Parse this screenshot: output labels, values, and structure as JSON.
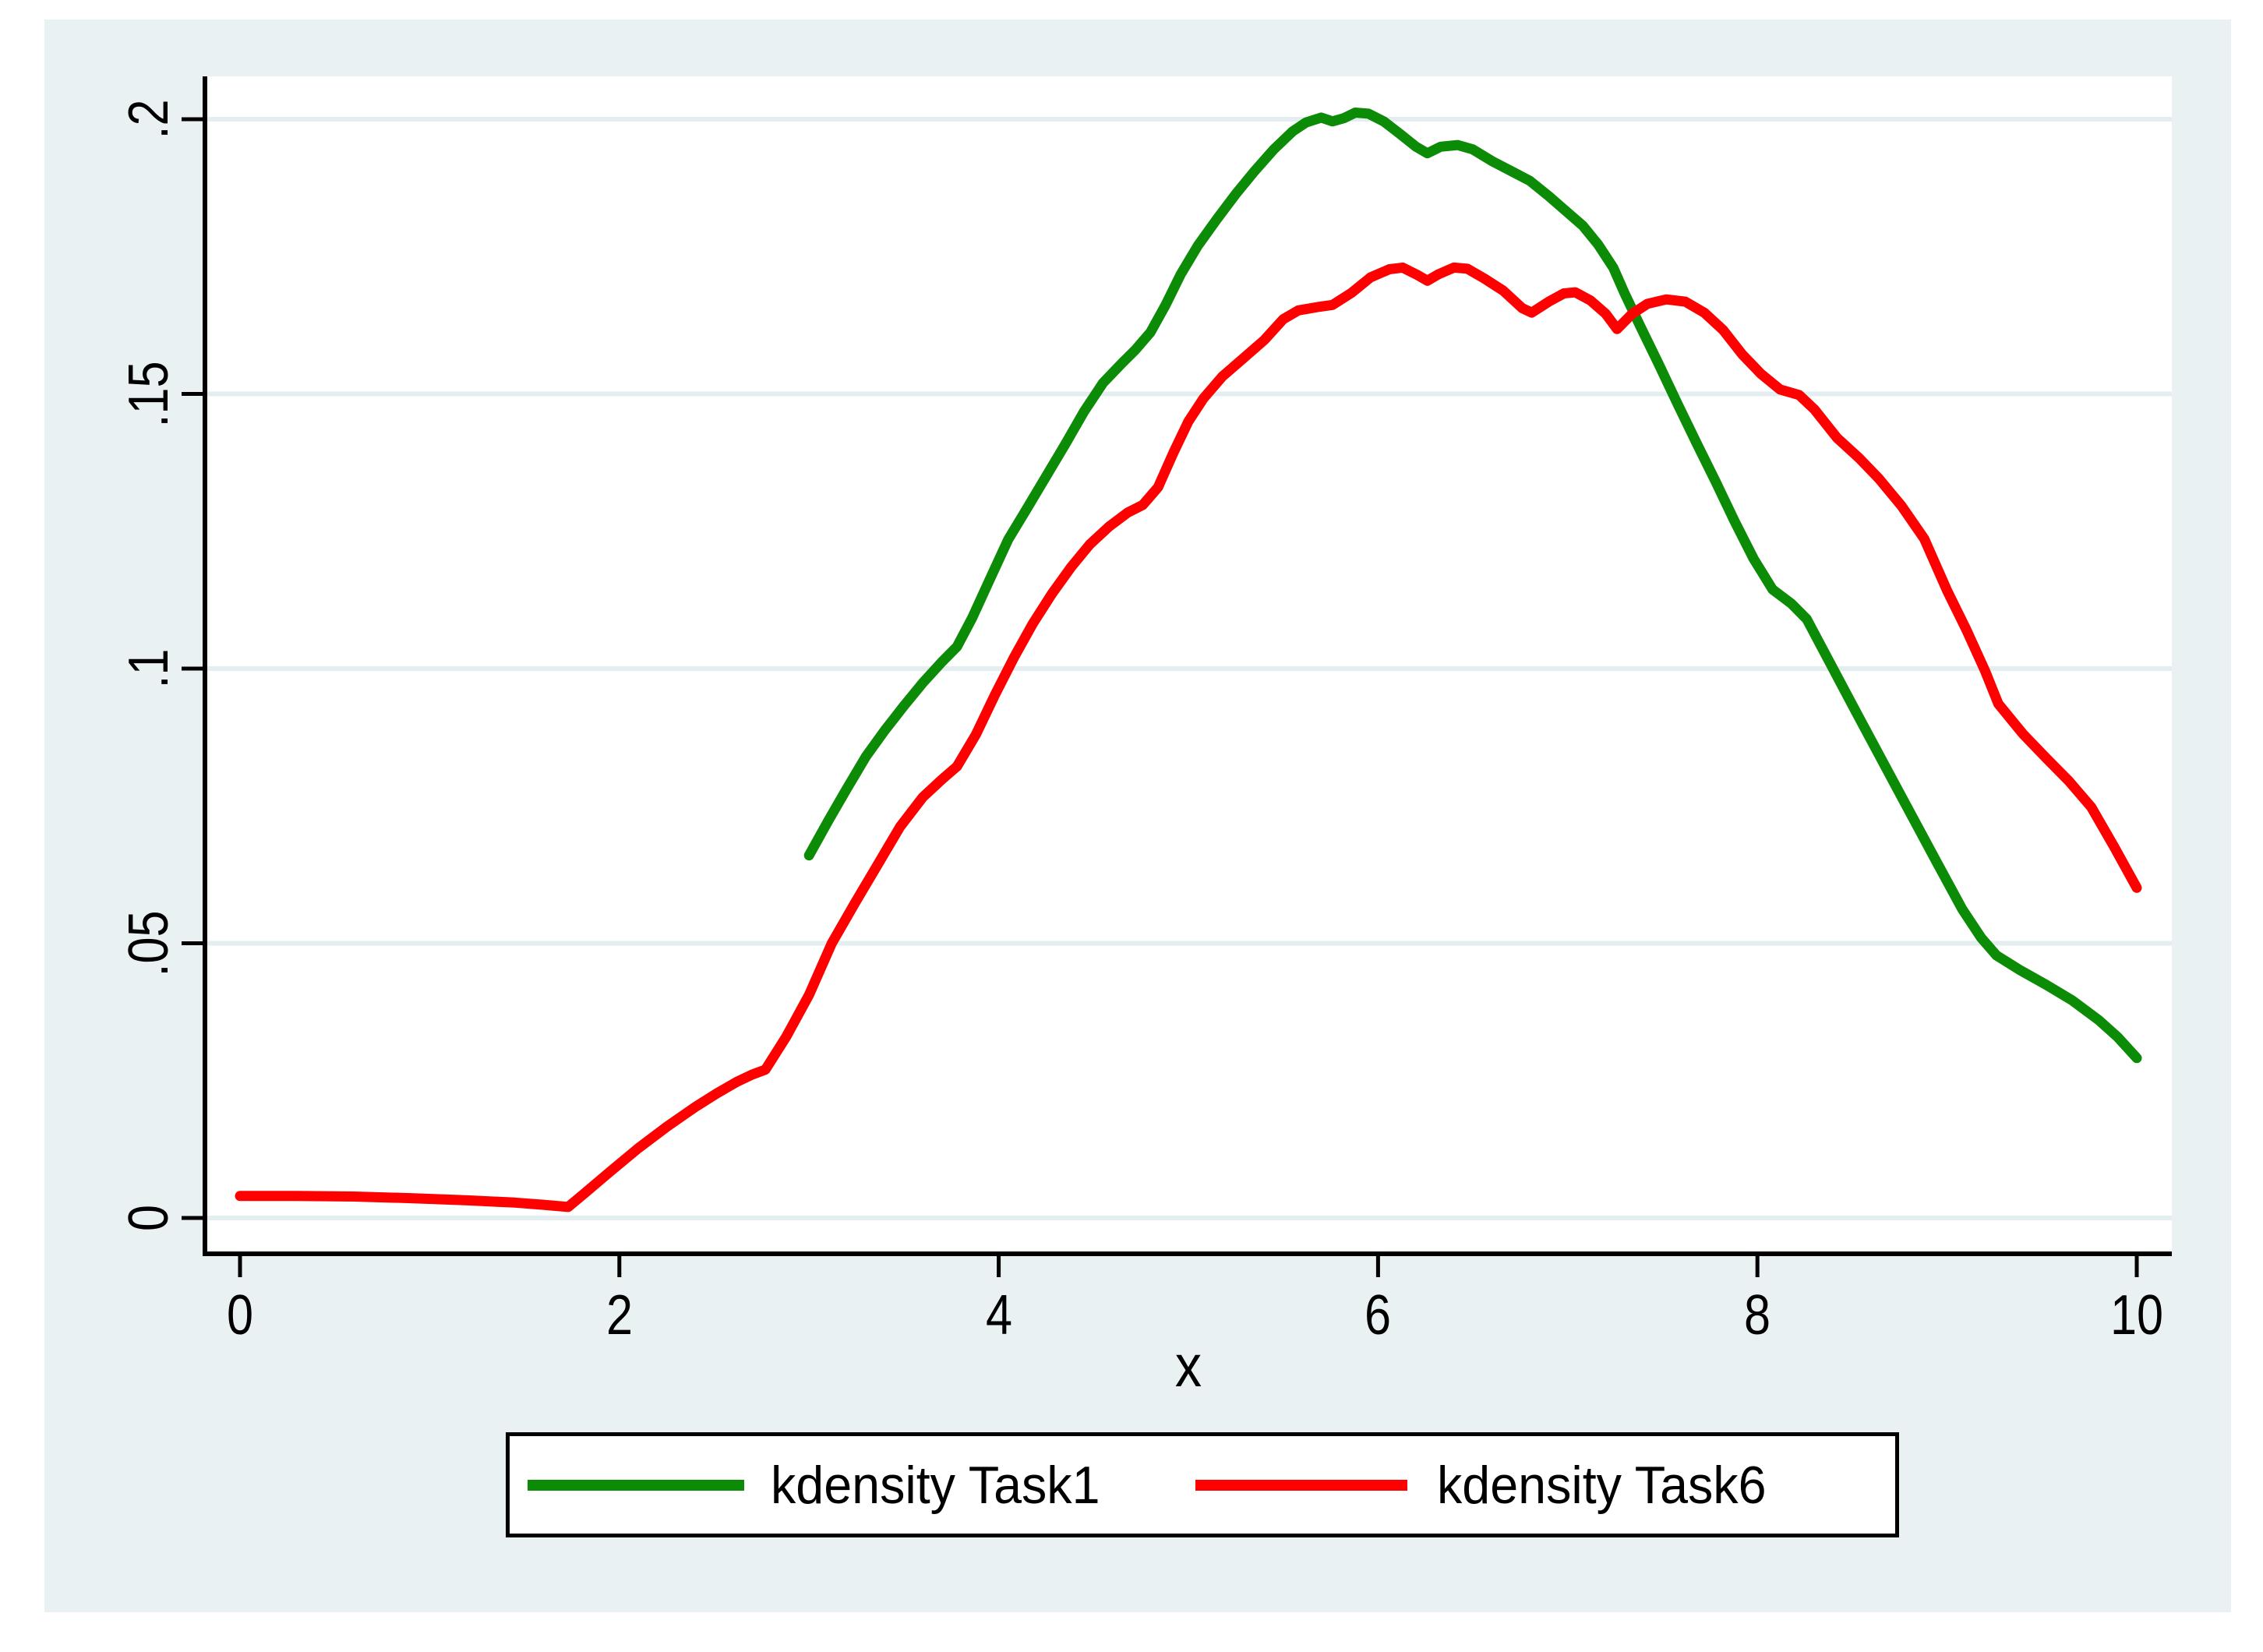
{
  "figure": {
    "page_background": "#ffffff",
    "canvas_background": "#eaf1f3",
    "plot_background": "#ffffff",
    "axis_color": "#000000",
    "gridline_color": "#e4edf0"
  },
  "chart_data": {
    "type": "line",
    "title": "",
    "xlabel": "x",
    "ylabel": "",
    "xlim": [
      0,
      10
    ],
    "ylim": [
      0,
      0.2
    ],
    "grid": true,
    "legend_position": "bottom",
    "x_ticks": [
      {
        "v": 0,
        "label": "0"
      },
      {
        "v": 2,
        "label": "2"
      },
      {
        "v": 4,
        "label": "4"
      },
      {
        "v": 6,
        "label": "6"
      },
      {
        "v": 8,
        "label": "8"
      },
      {
        "v": 10,
        "label": "10"
      }
    ],
    "y_ticks": [
      {
        "v": 0,
        "label": "0"
      },
      {
        "v": 0.05,
        "label": ".05"
      },
      {
        "v": 0.1,
        "label": ".1"
      },
      {
        "v": 0.15,
        "label": ".15"
      },
      {
        "v": 0.2,
        "label": ".2"
      }
    ],
    "series": [
      {
        "name": "kdensity Task1",
        "color": "#0c8b06",
        "points": [
          [
            3.0,
            0.066
          ],
          [
            3.1,
            0.0722
          ],
          [
            3.2,
            0.0782
          ],
          [
            3.3,
            0.084
          ],
          [
            3.4,
            0.0888
          ],
          [
            3.5,
            0.0932
          ],
          [
            3.6,
            0.0974
          ],
          [
            3.7,
            0.1012
          ],
          [
            3.78,
            0.104
          ],
          [
            3.86,
            0.1092
          ],
          [
            3.95,
            0.116
          ],
          [
            4.05,
            0.1235
          ],
          [
            4.15,
            0.1292
          ],
          [
            4.25,
            0.135
          ],
          [
            4.35,
            0.1408
          ],
          [
            4.45,
            0.1468
          ],
          [
            4.55,
            0.152
          ],
          [
            4.65,
            0.1556
          ],
          [
            4.72,
            0.158
          ],
          [
            4.8,
            0.1612
          ],
          [
            4.88,
            0.1662
          ],
          [
            4.96,
            0.1718
          ],
          [
            5.05,
            0.177
          ],
          [
            5.15,
            0.1818
          ],
          [
            5.25,
            0.1864
          ],
          [
            5.35,
            0.1906
          ],
          [
            5.45,
            0.1945
          ],
          [
            5.55,
            0.1978
          ],
          [
            5.62,
            0.1994
          ],
          [
            5.7,
            0.2003
          ],
          [
            5.76,
            0.1996
          ],
          [
            5.82,
            0.2002
          ],
          [
            5.88,
            0.2012
          ],
          [
            5.95,
            0.201
          ],
          [
            6.03,
            0.1996
          ],
          [
            6.12,
            0.1972
          ],
          [
            6.2,
            0.195
          ],
          [
            6.26,
            0.1938
          ],
          [
            6.33,
            0.195
          ],
          [
            6.42,
            0.1953
          ],
          [
            6.5,
            0.1945
          ],
          [
            6.6,
            0.1924
          ],
          [
            6.7,
            0.1906
          ],
          [
            6.8,
            0.1888
          ],
          [
            6.9,
            0.186
          ],
          [
            7.0,
            0.183
          ],
          [
            7.08,
            0.1806
          ],
          [
            7.16,
            0.1772
          ],
          [
            7.24,
            0.173
          ],
          [
            7.3,
            0.1683
          ],
          [
            7.38,
            0.1625
          ],
          [
            7.48,
            0.1554
          ],
          [
            7.58,
            0.1481
          ],
          [
            7.68,
            0.141
          ],
          [
            7.78,
            0.134
          ],
          [
            7.88,
            0.1268
          ],
          [
            7.98,
            0.12
          ],
          [
            8.08,
            0.1144
          ],
          [
            8.18,
            0.1118
          ],
          [
            8.26,
            0.109
          ],
          [
            8.38,
            0.1012
          ],
          [
            8.52,
            0.0921
          ],
          [
            8.66,
            0.0831
          ],
          [
            8.8,
            0.0741
          ],
          [
            8.94,
            0.0651
          ],
          [
            9.08,
            0.0562
          ],
          [
            9.18,
            0.051
          ],
          [
            9.26,
            0.0478
          ],
          [
            9.38,
            0.0452
          ],
          [
            9.52,
            0.0425
          ],
          [
            9.66,
            0.0396
          ],
          [
            9.8,
            0.036
          ],
          [
            9.9,
            0.0329
          ],
          [
            10.0,
            0.0291
          ]
        ]
      },
      {
        "name": "kdensity Task6",
        "color": "#fe0000",
        "points": [
          [
            0.0,
            0.004
          ],
          [
            0.3,
            0.004
          ],
          [
            0.6,
            0.0039
          ],
          [
            0.9,
            0.0036
          ],
          [
            1.2,
            0.0032
          ],
          [
            1.45,
            0.0028
          ],
          [
            1.6,
            0.0024
          ],
          [
            1.73,
            0.002
          ],
          [
            1.82,
            0.0046
          ],
          [
            1.95,
            0.0084
          ],
          [
            2.1,
            0.0127
          ],
          [
            2.25,
            0.0166
          ],
          [
            2.4,
            0.0202
          ],
          [
            2.51,
            0.0226
          ],
          [
            2.62,
            0.0248
          ],
          [
            2.7,
            0.0261
          ],
          [
            2.77,
            0.027
          ],
          [
            2.88,
            0.033
          ],
          [
            3.0,
            0.0406
          ],
          [
            3.12,
            0.05
          ],
          [
            3.24,
            0.0572
          ],
          [
            3.36,
            0.0642
          ],
          [
            3.48,
            0.0712
          ],
          [
            3.6,
            0.0766
          ],
          [
            3.7,
            0.0798
          ],
          [
            3.78,
            0.0822
          ],
          [
            3.88,
            0.088
          ],
          [
            3.98,
            0.0952
          ],
          [
            4.08,
            0.102
          ],
          [
            4.18,
            0.1082
          ],
          [
            4.28,
            0.1136
          ],
          [
            4.38,
            0.1184
          ],
          [
            4.48,
            0.1226
          ],
          [
            4.58,
            0.1258
          ],
          [
            4.68,
            0.1284
          ],
          [
            4.76,
            0.1298
          ],
          [
            4.84,
            0.133
          ],
          [
            4.92,
            0.1392
          ],
          [
            5.0,
            0.145
          ],
          [
            5.08,
            0.1492
          ],
          [
            5.18,
            0.1532
          ],
          [
            5.28,
            0.1562
          ],
          [
            5.4,
            0.1598
          ],
          [
            5.5,
            0.1636
          ],
          [
            5.58,
            0.1652
          ],
          [
            5.68,
            0.1658
          ],
          [
            5.76,
            0.1662
          ],
          [
            5.86,
            0.1684
          ],
          [
            5.96,
            0.1712
          ],
          [
            6.06,
            0.1727
          ],
          [
            6.13,
            0.173
          ],
          [
            6.21,
            0.1716
          ],
          [
            6.26,
            0.1706
          ],
          [
            6.32,
            0.1718
          ],
          [
            6.4,
            0.173
          ],
          [
            6.47,
            0.1728
          ],
          [
            6.56,
            0.171
          ],
          [
            6.66,
            0.1688
          ],
          [
            6.76,
            0.1656
          ],
          [
            6.81,
            0.1648
          ],
          [
            6.9,
            0.1668
          ],
          [
            6.98,
            0.1683
          ],
          [
            7.04,
            0.1685
          ],
          [
            7.12,
            0.167
          ],
          [
            7.2,
            0.1646
          ],
          [
            7.26,
            0.1618
          ],
          [
            7.34,
            0.1646
          ],
          [
            7.42,
            0.1664
          ],
          [
            7.52,
            0.1672
          ],
          [
            7.62,
            0.1668
          ],
          [
            7.72,
            0.1648
          ],
          [
            7.82,
            0.1616
          ],
          [
            7.92,
            0.1572
          ],
          [
            8.02,
            0.1536
          ],
          [
            8.12,
            0.1508
          ],
          [
            8.22,
            0.1498
          ],
          [
            8.3,
            0.1472
          ],
          [
            8.42,
            0.142
          ],
          [
            8.54,
            0.1382
          ],
          [
            8.64,
            0.1346
          ],
          [
            8.76,
            0.1296
          ],
          [
            8.88,
            0.1236
          ],
          [
            9.0,
            0.1142
          ],
          [
            9.1,
            0.1072
          ],
          [
            9.2,
            0.0996
          ],
          [
            9.27,
            0.0936
          ],
          [
            9.4,
            0.0881
          ],
          [
            9.52,
            0.0838
          ],
          [
            9.64,
            0.0796
          ],
          [
            9.76,
            0.0748
          ],
          [
            9.88,
            0.0676
          ],
          [
            10.0,
            0.0601
          ]
        ]
      }
    ]
  },
  "legend": {
    "items": [
      {
        "label": "kdensity Task1",
        "color": "#0c8b06"
      },
      {
        "label": "kdensity Task6",
        "color": "#fe0000"
      }
    ]
  }
}
